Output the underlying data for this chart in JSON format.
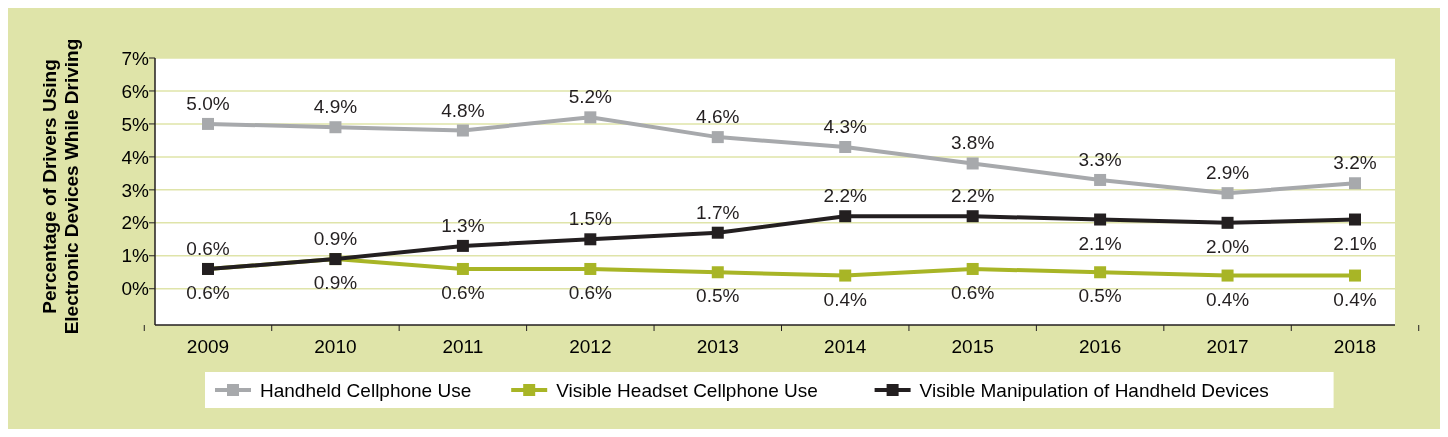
{
  "chart_data": {
    "type": "line",
    "ylabel": "Percentage of Drivers Using\nElectronic Devices While Driving",
    "categories": [
      "2009",
      "2010",
      "2011",
      "2012",
      "2013",
      "2014",
      "2015",
      "2016",
      "2017",
      "2018"
    ],
    "series": [
      {
        "name": "Handheld Cellphone Use",
        "color": "#a7a9ac",
        "values": [
          5.0,
          4.9,
          4.8,
          5.2,
          4.6,
          4.3,
          3.8,
          3.3,
          2.9,
          3.2
        ],
        "value_labels": [
          "5.0%",
          "4.9%",
          "4.8%",
          "5.2%",
          "4.6%",
          "4.3%",
          "3.8%",
          "3.3%",
          "2.9%",
          "3.2%"
        ]
      },
      {
        "name": "Visible Headset Cellphone Use",
        "color": "#a8b526",
        "values": [
          0.6,
          0.9,
          0.6,
          0.6,
          0.5,
          0.4,
          0.6,
          0.5,
          0.4,
          0.4
        ],
        "value_labels": [
          "0.6%",
          "0.9%",
          "0.6%",
          "0.6%",
          "0.5%",
          "0.4%",
          "0.6%",
          "0.5%",
          "0.4%",
          "0.4%"
        ]
      },
      {
        "name": "Visible Manipulation of Handheld Devices",
        "color": "#231f20",
        "values": [
          0.6,
          0.9,
          1.3,
          1.5,
          1.7,
          2.2,
          2.2,
          2.1,
          2.0,
          2.1
        ],
        "value_labels": [
          "0.6%",
          "0.9%",
          "1.3%",
          "1.5%",
          "1.7%",
          "2.2%",
          "2.2%",
          "2.1%",
          "2.0%",
          "2.1%"
        ]
      }
    ],
    "ylim": [
      -1.1,
      7
    ],
    "yticks": [
      {
        "value": 0,
        "label": "0%"
      },
      {
        "value": 1,
        "label": "1%"
      },
      {
        "value": 2,
        "label": "2%"
      },
      {
        "value": 3,
        "label": "3%"
      },
      {
        "value": 4,
        "label": "4%"
      },
      {
        "value": 5,
        "label": "5%"
      },
      {
        "value": 6,
        "label": "6%"
      },
      {
        "value": 7,
        "label": "7%"
      }
    ],
    "grid": "y",
    "legend": "bottom",
    "marker": "square",
    "line_style": "solid"
  }
}
